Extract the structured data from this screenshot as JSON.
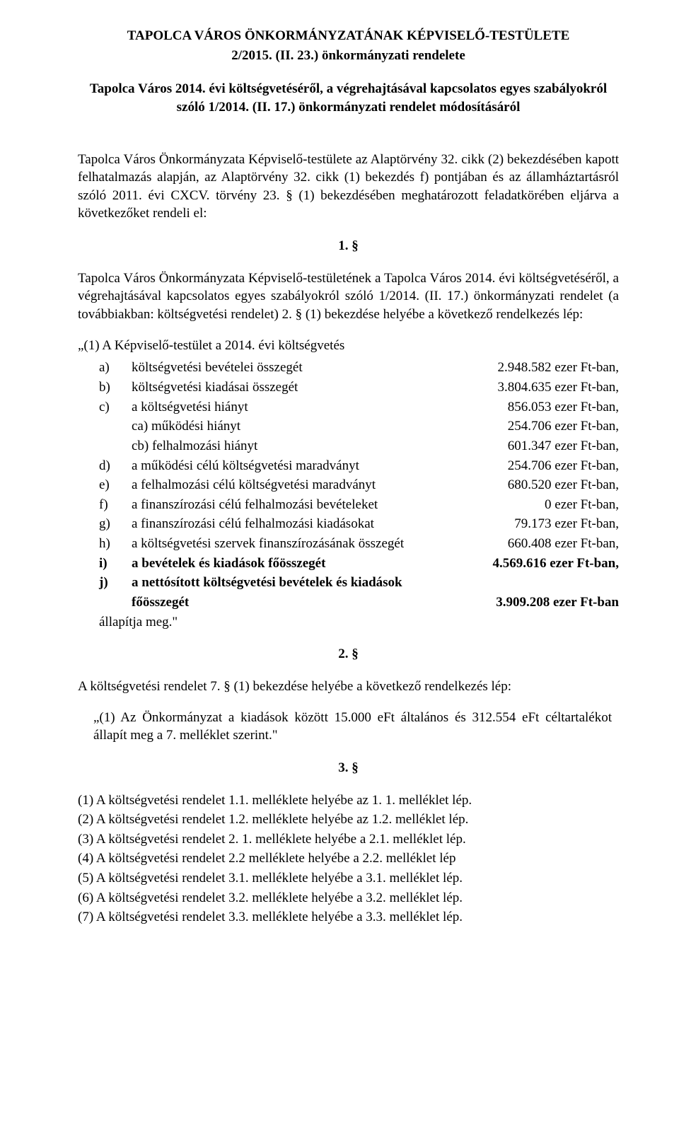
{
  "header": {
    "line1": "TAPOLCA VÁROS ÖNKORMÁNYZATÁNAK KÉPVISELŐ-TESTÜLETE",
    "line2": "2/2015. (II. 23.) önkormányzati rendelete",
    "desc": "Tapolca Város 2014. évi költségvetéséről, a végrehajtásával kapcsolatos egyes szabályokról szóló 1/2014. (II. 17.) önkormányzati rendelet módosításáról"
  },
  "preamble": "Tapolca Város Önkormányzata Képviselő-testülete az Alaptörvény 32. cikk (2) bekezdésében kapott felhatalmazás alapján, az Alaptörvény 32. cikk (1) bekezdés f) pontjában és az államháztartásról szóló 2011. évi CXCV. törvény 23. § (1) bekezdésében meghatározott feladatkörében eljárva a következőket rendeli el:",
  "section1": {
    "num": "1. §",
    "intro": "Tapolca Város Önkormányzata Képviselő-testületének a Tapolca Város 2014. évi költségvetéséről, a végrehajtásával kapcsolatos egyes szabályokról szóló 1/2014. (II. 17.) önkormányzati rendelet (a továbbiakban: költségvetési rendelet) 2. § (1) bekezdése helyébe a következő rendelkezés lép:",
    "list_intro": "„(1) A Képviselő-testület a 2014. évi költségvetés",
    "items": [
      {
        "letter": "a)",
        "desc": "költségvetési bevételei összegét",
        "value": "2.948.582 ezer Ft-ban,",
        "bold": false,
        "sub": false
      },
      {
        "letter": "b)",
        "desc": "költségvetési kiadásai összegét",
        "value": "3.804.635 ezer Ft-ban,",
        "bold": false,
        "sub": false
      },
      {
        "letter": "c)",
        "desc": "a költségvetési hiányt",
        "value": "856.053 ezer Ft-ban,",
        "bold": false,
        "sub": false
      },
      {
        "letter": "",
        "desc": "ca) működési hiányt",
        "value": "254.706 ezer Ft-ban,",
        "bold": false,
        "sub": true
      },
      {
        "letter": "",
        "desc": "cb) felhalmozási hiányt",
        "value": "601.347 ezer Ft-ban,",
        "bold": false,
        "sub": true
      },
      {
        "letter": "d)",
        "desc": "a működési célú költségvetési maradványt",
        "value": "254.706 ezer Ft-ban,",
        "bold": false,
        "sub": false
      },
      {
        "letter": "e)",
        "desc": "a felhalmozási célú költségvetési maradványt",
        "value": "680.520 ezer Ft-ban,",
        "bold": false,
        "sub": false
      },
      {
        "letter": "f)",
        "desc": "a finanszírozási célú felhalmozási bevételeket",
        "value": "0 ezer Ft-ban,",
        "bold": false,
        "sub": false
      },
      {
        "letter": "g)",
        "desc": "a finanszírozási célú felhalmozási kiadásokat",
        "value": "79.173 ezer Ft-ban,",
        "bold": false,
        "sub": false
      },
      {
        "letter": "h)",
        "desc": "a költségvetési szervek finanszírozásának összegét",
        "value": "660.408 ezer Ft-ban,",
        "bold": false,
        "sub": false
      },
      {
        "letter": "i)",
        "desc": "a bevételek és kiadások főösszegét",
        "value": "4.569.616 ezer Ft-ban,",
        "bold": true,
        "sub": false
      },
      {
        "letter": "j)",
        "desc": "a nettósított költségvetési  bevételek és kiadások",
        "value": "",
        "bold": true,
        "sub": false
      },
      {
        "letter": "",
        "desc": " főösszegét",
        "value": "3.909.208  ezer Ft-ban",
        "bold": true,
        "sub": true
      }
    ],
    "closing": "állapítja meg.\""
  },
  "section2": {
    "num": "2. §",
    "text": "A költségvetési rendelet 7. § (1) bekezdése helyébe a következő rendelkezés lép:",
    "quote": "„(1) Az Önkormányzat a kiadások között 15.000 eFt általános és 312.554 eFt céltartalékot állapít meg a 7. melléklet szerint.\""
  },
  "section3": {
    "num": "3. §",
    "lines": [
      "(1) A költségvetési rendelet 1.1. melléklete helyébe az 1. 1. melléklet lép.",
      "(2) A költségvetési rendelet 1.2. melléklete helyébe az 1.2. melléklet lép.",
      "(3) A költségvetési rendelet 2. 1. melléklete helyébe a 2.1. melléklet lép.",
      "(4) A költségvetési rendelet 2.2 melléklete helyébe a 2.2. melléklet lép",
      "(5) A költségvetési rendelet 3.1. melléklete helyébe a 3.1. melléklet lép.",
      "(6) A költségvetési rendelet 3.2. melléklete helyébe a 3.2. melléklet lép.",
      "(7) A költségvetési rendelet 3.3. melléklete helyébe a 3.3. melléklet lép."
    ]
  }
}
